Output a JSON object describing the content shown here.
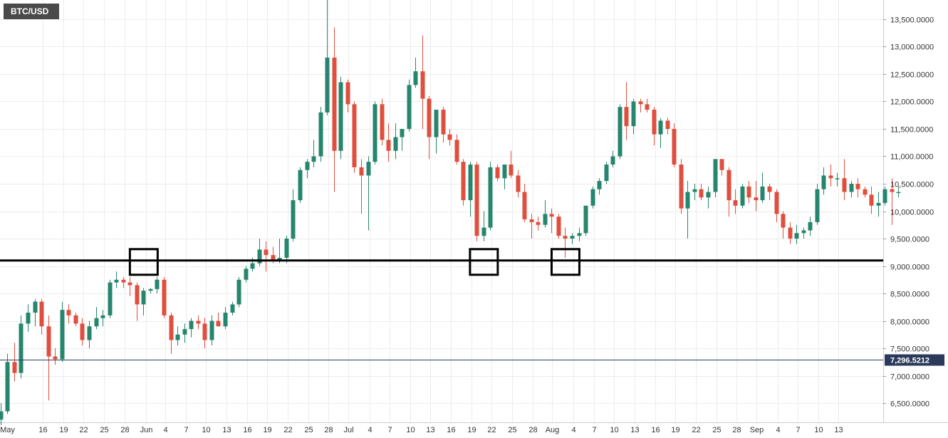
{
  "header": {
    "symbol": "BTC/USD"
  },
  "colors": {
    "up": "#26866d",
    "down": "#e04e3e",
    "grid": "#ececec",
    "price_line": "#2b3a5a",
    "support": "#000000"
  },
  "chart_data": {
    "type": "candlestick",
    "symbol": "BTC/USD",
    "ylim": [
      6150,
      13850
    ],
    "y_ticks": [
      {
        "value": 13500,
        "label": "13,500.0000"
      },
      {
        "value": 13000,
        "label": "13,000.0000"
      },
      {
        "value": 12500,
        "label": "12,500.0000"
      },
      {
        "value": 12000,
        "label": "12,000.0000"
      },
      {
        "value": 11500,
        "label": "11,500.0000"
      },
      {
        "value": 11000,
        "label": "11,000.0000"
      },
      {
        "value": 10500,
        "label": "10,500.0000"
      },
      {
        "value": 10000,
        "label": "10,000.0000"
      },
      {
        "value": 9500,
        "label": "9,500.0000"
      },
      {
        "value": 9000,
        "label": "9,000.0000"
      },
      {
        "value": 8500,
        "label": "8,500.0000"
      },
      {
        "value": 8000,
        "label": "8,000.0000"
      },
      {
        "value": 7500,
        "label": "7,500.0000"
      },
      {
        "value": 7000,
        "label": "7,000.0000"
      },
      {
        "value": 6500,
        "label": "6,500.0000"
      }
    ],
    "x_ticks": [
      "May",
      "16",
      "19",
      "22",
      "25",
      "28",
      "Jun",
      "4",
      "7",
      "10",
      "13",
      "16",
      "19",
      "22",
      "25",
      "28",
      "Jul",
      "4",
      "7",
      "10",
      "13",
      "16",
      "19",
      "22",
      "25",
      "28",
      "Aug",
      "4",
      "7",
      "10",
      "13",
      "16",
      "19",
      "22",
      "25",
      "28",
      "Sep",
      "4",
      "7",
      "10",
      "13"
    ],
    "current_price": {
      "value": 7296.5212,
      "label": "7,296.5212"
    },
    "support_level": 9100,
    "highlight_candles": [
      21,
      71,
      83
    ],
    "candles": [
      {
        "o": 6200,
        "h": 6500,
        "l": 6100,
        "c": 6350
      },
      {
        "o": 6350,
        "h": 7400,
        "l": 6300,
        "c": 7250
      },
      {
        "o": 7250,
        "h": 7600,
        "l": 6900,
        "c": 7050
      },
      {
        "o": 7050,
        "h": 8100,
        "l": 6950,
        "c": 7950
      },
      {
        "o": 7950,
        "h": 8300,
        "l": 7800,
        "c": 8150
      },
      {
        "o": 8150,
        "h": 8400,
        "l": 7900,
        "c": 8350
      },
      {
        "o": 8350,
        "h": 8400,
        "l": 7750,
        "c": 7900
      },
      {
        "o": 7900,
        "h": 8100,
        "l": 6550,
        "c": 7350
      },
      {
        "o": 7350,
        "h": 7500,
        "l": 7200,
        "c": 7300
      },
      {
        "o": 7300,
        "h": 8350,
        "l": 7250,
        "c": 8200
      },
      {
        "o": 8200,
        "h": 8300,
        "l": 7950,
        "c": 8100
      },
      {
        "o": 8100,
        "h": 8150,
        "l": 7900,
        "c": 7950
      },
      {
        "o": 7950,
        "h": 8050,
        "l": 7550,
        "c": 7650
      },
      {
        "o": 7650,
        "h": 8000,
        "l": 7500,
        "c": 7900
      },
      {
        "o": 7900,
        "h": 8250,
        "l": 7850,
        "c": 8050
      },
      {
        "o": 8050,
        "h": 8200,
        "l": 7900,
        "c": 8100
      },
      {
        "o": 8100,
        "h": 8750,
        "l": 8050,
        "c": 8700
      },
      {
        "o": 8700,
        "h": 8900,
        "l": 8600,
        "c": 8750
      },
      {
        "o": 8750,
        "h": 8800,
        "l": 8600,
        "c": 8700
      },
      {
        "o": 8700,
        "h": 8800,
        "l": 8450,
        "c": 8650
      },
      {
        "o": 8650,
        "h": 8700,
        "l": 8000,
        "c": 8300
      },
      {
        "o": 8300,
        "h": 8600,
        "l": 8100,
        "c": 8550
      },
      {
        "o": 8550,
        "h": 8600,
        "l": 8500,
        "c": 8580
      },
      {
        "o": 8580,
        "h": 8800,
        "l": 8500,
        "c": 8750
      },
      {
        "o": 8750,
        "h": 8800,
        "l": 8050,
        "c": 8100
      },
      {
        "o": 8100,
        "h": 8150,
        "l": 7400,
        "c": 7650
      },
      {
        "o": 7650,
        "h": 7900,
        "l": 7550,
        "c": 7750
      },
      {
        "o": 7750,
        "h": 7950,
        "l": 7600,
        "c": 7850
      },
      {
        "o": 7850,
        "h": 8050,
        "l": 7700,
        "c": 8000
      },
      {
        "o": 8000,
        "h": 8100,
        "l": 7850,
        "c": 7950
      },
      {
        "o": 7950,
        "h": 8050,
        "l": 7500,
        "c": 7650
      },
      {
        "o": 7650,
        "h": 8100,
        "l": 7550,
        "c": 8000
      },
      {
        "o": 8000,
        "h": 8150,
        "l": 7900,
        "c": 7900
      },
      {
        "o": 7900,
        "h": 8250,
        "l": 7850,
        "c": 8150
      },
      {
        "o": 8150,
        "h": 8350,
        "l": 8100,
        "c": 8300
      },
      {
        "o": 8300,
        "h": 8800,
        "l": 8250,
        "c": 8750
      },
      {
        "o": 8750,
        "h": 9000,
        "l": 8700,
        "c": 8950
      },
      {
        "o": 8950,
        "h": 9150,
        "l": 8900,
        "c": 9050
      },
      {
        "o": 9050,
        "h": 9500,
        "l": 9000,
        "c": 9300
      },
      {
        "o": 9300,
        "h": 9450,
        "l": 8900,
        "c": 9200
      },
      {
        "o": 9200,
        "h": 9350,
        "l": 9050,
        "c": 9100
      },
      {
        "o": 9100,
        "h": 9500,
        "l": 9050,
        "c": 9150
      },
      {
        "o": 9150,
        "h": 9550,
        "l": 9050,
        "c": 9500
      },
      {
        "o": 9500,
        "h": 10400,
        "l": 9450,
        "c": 10200
      },
      {
        "o": 10200,
        "h": 10800,
        "l": 10150,
        "c": 10750
      },
      {
        "o": 10750,
        "h": 10950,
        "l": 10600,
        "c": 10900
      },
      {
        "o": 10900,
        "h": 11300,
        "l": 10800,
        "c": 11000
      },
      {
        "o": 11000,
        "h": 11900,
        "l": 10900,
        "c": 11800
      },
      {
        "o": 11800,
        "h": 13850,
        "l": 11750,
        "c": 12800
      },
      {
        "o": 12800,
        "h": 13350,
        "l": 10350,
        "c": 11100
      },
      {
        "o": 11100,
        "h": 12450,
        "l": 10950,
        "c": 12350
      },
      {
        "o": 12350,
        "h": 12400,
        "l": 11800,
        "c": 11950
      },
      {
        "o": 11950,
        "h": 12000,
        "l": 10700,
        "c": 10800
      },
      {
        "o": 10800,
        "h": 10950,
        "l": 9950,
        "c": 10650
      },
      {
        "o": 10650,
        "h": 11000,
        "l": 9650,
        "c": 10900
      },
      {
        "o": 10900,
        "h": 12000,
        "l": 10850,
        "c": 11950
      },
      {
        "o": 11950,
        "h": 12050,
        "l": 11200,
        "c": 11300
      },
      {
        "o": 11300,
        "h": 11600,
        "l": 10900,
        "c": 11100
      },
      {
        "o": 11100,
        "h": 11600,
        "l": 10950,
        "c": 11350
      },
      {
        "o": 11350,
        "h": 11500,
        "l": 11100,
        "c": 11500
      },
      {
        "o": 11500,
        "h": 12400,
        "l": 11450,
        "c": 12300
      },
      {
        "o": 12300,
        "h": 12800,
        "l": 12250,
        "c": 12550
      },
      {
        "o": 12550,
        "h": 13200,
        "l": 11500,
        "c": 12050
      },
      {
        "o": 12050,
        "h": 12100,
        "l": 10950,
        "c": 11350
      },
      {
        "o": 11350,
        "h": 11850,
        "l": 11050,
        "c": 11850
      },
      {
        "o": 11850,
        "h": 11900,
        "l": 11250,
        "c": 11400
      },
      {
        "o": 11400,
        "h": 11500,
        "l": 11200,
        "c": 11300
      },
      {
        "o": 11300,
        "h": 11400,
        "l": 10850,
        "c": 10900
      },
      {
        "o": 10900,
        "h": 10950,
        "l": 10100,
        "c": 10200
      },
      {
        "o": 10200,
        "h": 10900,
        "l": 9900,
        "c": 10850
      },
      {
        "o": 10850,
        "h": 10900,
        "l": 9450,
        "c": 9550
      },
      {
        "o": 9550,
        "h": 10000,
        "l": 9450,
        "c": 9700
      },
      {
        "o": 9700,
        "h": 10900,
        "l": 9650,
        "c": 10800
      },
      {
        "o": 10800,
        "h": 10850,
        "l": 10550,
        "c": 10600
      },
      {
        "o": 10600,
        "h": 10850,
        "l": 10400,
        "c": 10850
      },
      {
        "o": 10850,
        "h": 11100,
        "l": 10600,
        "c": 10650
      },
      {
        "o": 10650,
        "h": 10750,
        "l": 10250,
        "c": 10350
      },
      {
        "o": 10350,
        "h": 10500,
        "l": 9800,
        "c": 9850
      },
      {
        "o": 9850,
        "h": 9950,
        "l": 9500,
        "c": 9800
      },
      {
        "o": 9800,
        "h": 9900,
        "l": 9650,
        "c": 9750
      },
      {
        "o": 9750,
        "h": 10200,
        "l": 9700,
        "c": 9950
      },
      {
        "o": 9950,
        "h": 10050,
        "l": 9600,
        "c": 9900
      },
      {
        "o": 9900,
        "h": 9950,
        "l": 9500,
        "c": 9550
      },
      {
        "o": 9550,
        "h": 9700,
        "l": 9150,
        "c": 9500
      },
      {
        "o": 9500,
        "h": 9600,
        "l": 9400,
        "c": 9550
      },
      {
        "o": 9550,
        "h": 9700,
        "l": 9450,
        "c": 9600
      },
      {
        "o": 9600,
        "h": 10100,
        "l": 9550,
        "c": 10100
      },
      {
        "o": 10100,
        "h": 10450,
        "l": 10050,
        "c": 10400
      },
      {
        "o": 10400,
        "h": 10600,
        "l": 10300,
        "c": 10550
      },
      {
        "o": 10550,
        "h": 10900,
        "l": 10500,
        "c": 10850
      },
      {
        "o": 10850,
        "h": 11100,
        "l": 10800,
        "c": 11000
      },
      {
        "o": 11000,
        "h": 11950,
        "l": 10950,
        "c": 11900
      },
      {
        "o": 11900,
        "h": 12350,
        "l": 11300,
        "c": 11550
      },
      {
        "o": 11550,
        "h": 12050,
        "l": 11400,
        "c": 12000
      },
      {
        "o": 12000,
        "h": 12050,
        "l": 11800,
        "c": 11950
      },
      {
        "o": 11950,
        "h": 12050,
        "l": 11800,
        "c": 11850
      },
      {
        "o": 11850,
        "h": 11900,
        "l": 11200,
        "c": 11400
      },
      {
        "o": 11400,
        "h": 11700,
        "l": 11150,
        "c": 11650
      },
      {
        "o": 11650,
        "h": 11700,
        "l": 11400,
        "c": 11500
      },
      {
        "o": 11500,
        "h": 11600,
        "l": 10800,
        "c": 10850
      },
      {
        "o": 10850,
        "h": 10950,
        "l": 9950,
        "c": 10050
      },
      {
        "o": 10050,
        "h": 10550,
        "l": 9500,
        "c": 10350
      },
      {
        "o": 10350,
        "h": 10500,
        "l": 10200,
        "c": 10400
      },
      {
        "o": 10400,
        "h": 10500,
        "l": 10200,
        "c": 10250
      },
      {
        "o": 10250,
        "h": 10450,
        "l": 10050,
        "c": 10350
      },
      {
        "o": 10350,
        "h": 10950,
        "l": 10250,
        "c": 10950
      },
      {
        "o": 10950,
        "h": 10950,
        "l": 10650,
        "c": 10750
      },
      {
        "o": 10750,
        "h": 10800,
        "l": 9900,
        "c": 10200
      },
      {
        "o": 10200,
        "h": 10400,
        "l": 9950,
        "c": 10100
      },
      {
        "o": 10100,
        "h": 10500,
        "l": 10050,
        "c": 10450
      },
      {
        "o": 10450,
        "h": 10550,
        "l": 10150,
        "c": 10250
      },
      {
        "o": 10250,
        "h": 10550,
        "l": 10000,
        "c": 10200
      },
      {
        "o": 10200,
        "h": 10700,
        "l": 10150,
        "c": 10450
      },
      {
        "o": 10450,
        "h": 10500,
        "l": 10200,
        "c": 10350
      },
      {
        "o": 10350,
        "h": 10400,
        "l": 9800,
        "c": 9950
      },
      {
        "o": 9950,
        "h": 10000,
        "l": 9500,
        "c": 9700
      },
      {
        "o": 9700,
        "h": 9800,
        "l": 9400,
        "c": 9500
      },
      {
        "o": 9500,
        "h": 9750,
        "l": 9400,
        "c": 9600
      },
      {
        "o": 9600,
        "h": 9700,
        "l": 9500,
        "c": 9650
      },
      {
        "o": 9650,
        "h": 9900,
        "l": 9550,
        "c": 9800
      },
      {
        "o": 9800,
        "h": 10500,
        "l": 9750,
        "c": 10400
      },
      {
        "o": 10400,
        "h": 10800,
        "l": 10300,
        "c": 10650
      },
      {
        "o": 10650,
        "h": 10850,
        "l": 10450,
        "c": 10600
      },
      {
        "o": 10600,
        "h": 10700,
        "l": 10450,
        "c": 10600
      },
      {
        "o": 10600,
        "h": 10950,
        "l": 10200,
        "c": 10350
      },
      {
        "o": 10350,
        "h": 10550,
        "l": 10250,
        "c": 10500
      },
      {
        "o": 10500,
        "h": 10600,
        "l": 10250,
        "c": 10400
      },
      {
        "o": 10400,
        "h": 10450,
        "l": 10250,
        "c": 10300
      },
      {
        "o": 10300,
        "h": 10450,
        "l": 9950,
        "c": 10100
      },
      {
        "o": 10100,
        "h": 10350,
        "l": 9900,
        "c": 10150
      },
      {
        "o": 10150,
        "h": 10450,
        "l": 10100,
        "c": 10400
      },
      {
        "o": 10400,
        "h": 10600,
        "l": 9750,
        "c": 10350
      },
      {
        "o": 10350,
        "h": 10450,
        "l": 10250,
        "c": 10350
      }
    ]
  }
}
